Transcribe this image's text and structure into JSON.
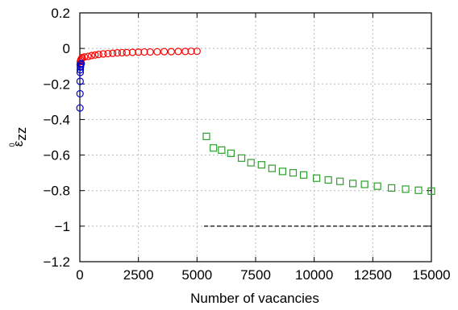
{
  "chart_data": {
    "type": "scatter",
    "title": "",
    "xlabel": "Number of vacancies",
    "ylabel": "ε°zz",
    "ylabel_parts": {
      "symbol": "ε",
      "superscript": "0",
      "subscript": "zz"
    },
    "xlim": [
      0,
      15000
    ],
    "ylim": [
      -1.2,
      0.2
    ],
    "xticks": [
      {
        "value": 0,
        "label": "0"
      },
      {
        "value": 2500,
        "label": "2500"
      },
      {
        "value": 5000,
        "label": "5000"
      },
      {
        "value": 7500,
        "label": "7500"
      },
      {
        "value": 10000,
        "label": "10000"
      },
      {
        "value": 12500,
        "label": "12500"
      },
      {
        "value": 15000,
        "label": "15000"
      }
    ],
    "yticks": [
      {
        "value": 0.2,
        "label": "0.2"
      },
      {
        "value": 0,
        "label": "0"
      },
      {
        "value": -0.2,
        "label": "−0.2"
      },
      {
        "value": -0.4,
        "label": "−0.4"
      },
      {
        "value": -0.6,
        "label": "−0.6"
      },
      {
        "value": -0.8,
        "label": "−0.8"
      },
      {
        "value": -1,
        "label": "−1"
      },
      {
        "value": -1.2,
        "label": "−1.2"
      }
    ],
    "grid": true,
    "series": [
      {
        "marker": "circle",
        "color": "#ff0000",
        "points": [
          [
            10,
            -0.09
          ],
          [
            20,
            -0.075
          ],
          [
            40,
            -0.065
          ],
          [
            70,
            -0.058
          ],
          [
            100,
            -0.052
          ],
          [
            200,
            -0.048
          ],
          [
            350,
            -0.045
          ],
          [
            500,
            -0.04
          ],
          [
            650,
            -0.037
          ],
          [
            800,
            -0.034
          ],
          [
            1000,
            -0.031
          ],
          [
            1200,
            -0.029
          ],
          [
            1400,
            -0.027
          ],
          [
            1600,
            -0.025
          ],
          [
            1800,
            -0.024
          ],
          [
            2000,
            -0.023
          ],
          [
            2250,
            -0.022
          ],
          [
            2500,
            -0.021
          ],
          [
            2750,
            -0.02
          ],
          [
            3000,
            -0.02
          ],
          [
            3300,
            -0.019
          ],
          [
            3600,
            -0.018
          ],
          [
            3900,
            -0.018
          ],
          [
            4200,
            -0.017
          ],
          [
            4500,
            -0.017
          ],
          [
            4750,
            -0.016
          ],
          [
            5000,
            -0.016
          ]
        ]
      },
      {
        "marker": "circle",
        "color": "#0000cc",
        "points": [
          [
            5,
            -0.335
          ],
          [
            8,
            -0.255
          ],
          [
            12,
            -0.185
          ],
          [
            16,
            -0.135
          ],
          [
            20,
            -0.12
          ],
          [
            25,
            -0.105
          ],
          [
            30,
            -0.1
          ],
          [
            40,
            -0.09
          ],
          [
            60,
            -0.085
          ]
        ]
      },
      {
        "marker": "square",
        "color": "#2ca02c",
        "points": [
          [
            5400,
            -0.495
          ],
          [
            5700,
            -0.56
          ],
          [
            6050,
            -0.572
          ],
          [
            6450,
            -0.59
          ],
          [
            6900,
            -0.617
          ],
          [
            7300,
            -0.643
          ],
          [
            7750,
            -0.655
          ],
          [
            8200,
            -0.675
          ],
          [
            8650,
            -0.692
          ],
          [
            9100,
            -0.7
          ],
          [
            9550,
            -0.712
          ],
          [
            10100,
            -0.73
          ],
          [
            10600,
            -0.74
          ],
          [
            11100,
            -0.748
          ],
          [
            11650,
            -0.76
          ],
          [
            12150,
            -0.765
          ],
          [
            12700,
            -0.775
          ],
          [
            13300,
            -0.785
          ],
          [
            13900,
            -0.792
          ],
          [
            14450,
            -0.798
          ],
          [
            15000,
            -0.803
          ]
        ]
      }
    ],
    "reference_lines": [
      {
        "style": "dashed",
        "color": "#000000",
        "x": [
          5300,
          15000
        ],
        "y": [
          -1,
          -1
        ]
      }
    ]
  }
}
